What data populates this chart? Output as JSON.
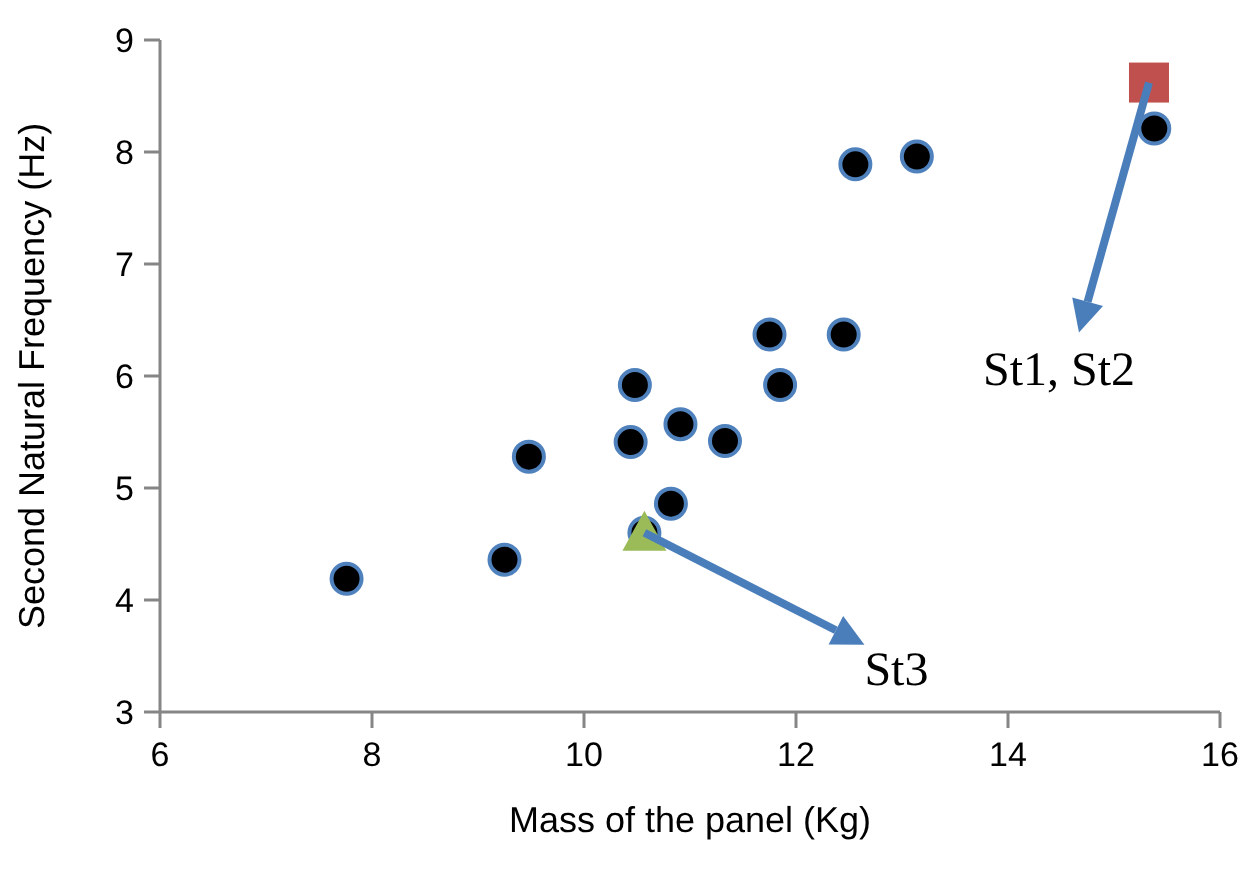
{
  "chart_data": {
    "type": "scatter",
    "xlabel": "Mass of the panel (Kg)",
    "ylabel": "Second Natural Frequency (Hz)",
    "xlim": [
      6,
      16
    ],
    "xticks": [
      6,
      8,
      10,
      12,
      14,
      16
    ],
    "ylim": [
      3,
      9
    ],
    "yticks": [
      3,
      4,
      5,
      6,
      7,
      8,
      9
    ],
    "grid": false,
    "series": [
      {
        "color": "#000000",
        "marker": "circle",
        "x": [
          7.76,
          9.25,
          9.48,
          10.48,
          10.44,
          10.91,
          10.82,
          10.57,
          11.33,
          11.75,
          12.45,
          11.85,
          12.56,
          13.14,
          15.38
        ],
        "values": [
          4.19,
          4.36,
          5.28,
          5.92,
          5.41,
          5.57,
          4.86,
          4.6,
          5.42,
          6.37,
          6.37,
          5.92,
          7.89,
          7.96,
          8.21
        ]
      },
      {
        "color": "#c0504d",
        "marker": "square",
        "x": [
          15.33
        ],
        "values": [
          8.62
        ]
      },
      {
        "color": "#9bbb59",
        "marker": "triangle",
        "x": [
          10.57
        ],
        "values": [
          4.6
        ]
      }
    ],
    "annotations": [
      {
        "text": "St1, St2",
        "x": 15.33,
        "y": 8.62
      },
      {
        "text": "St3",
        "x": 10.57,
        "y": 4.6
      }
    ]
  }
}
